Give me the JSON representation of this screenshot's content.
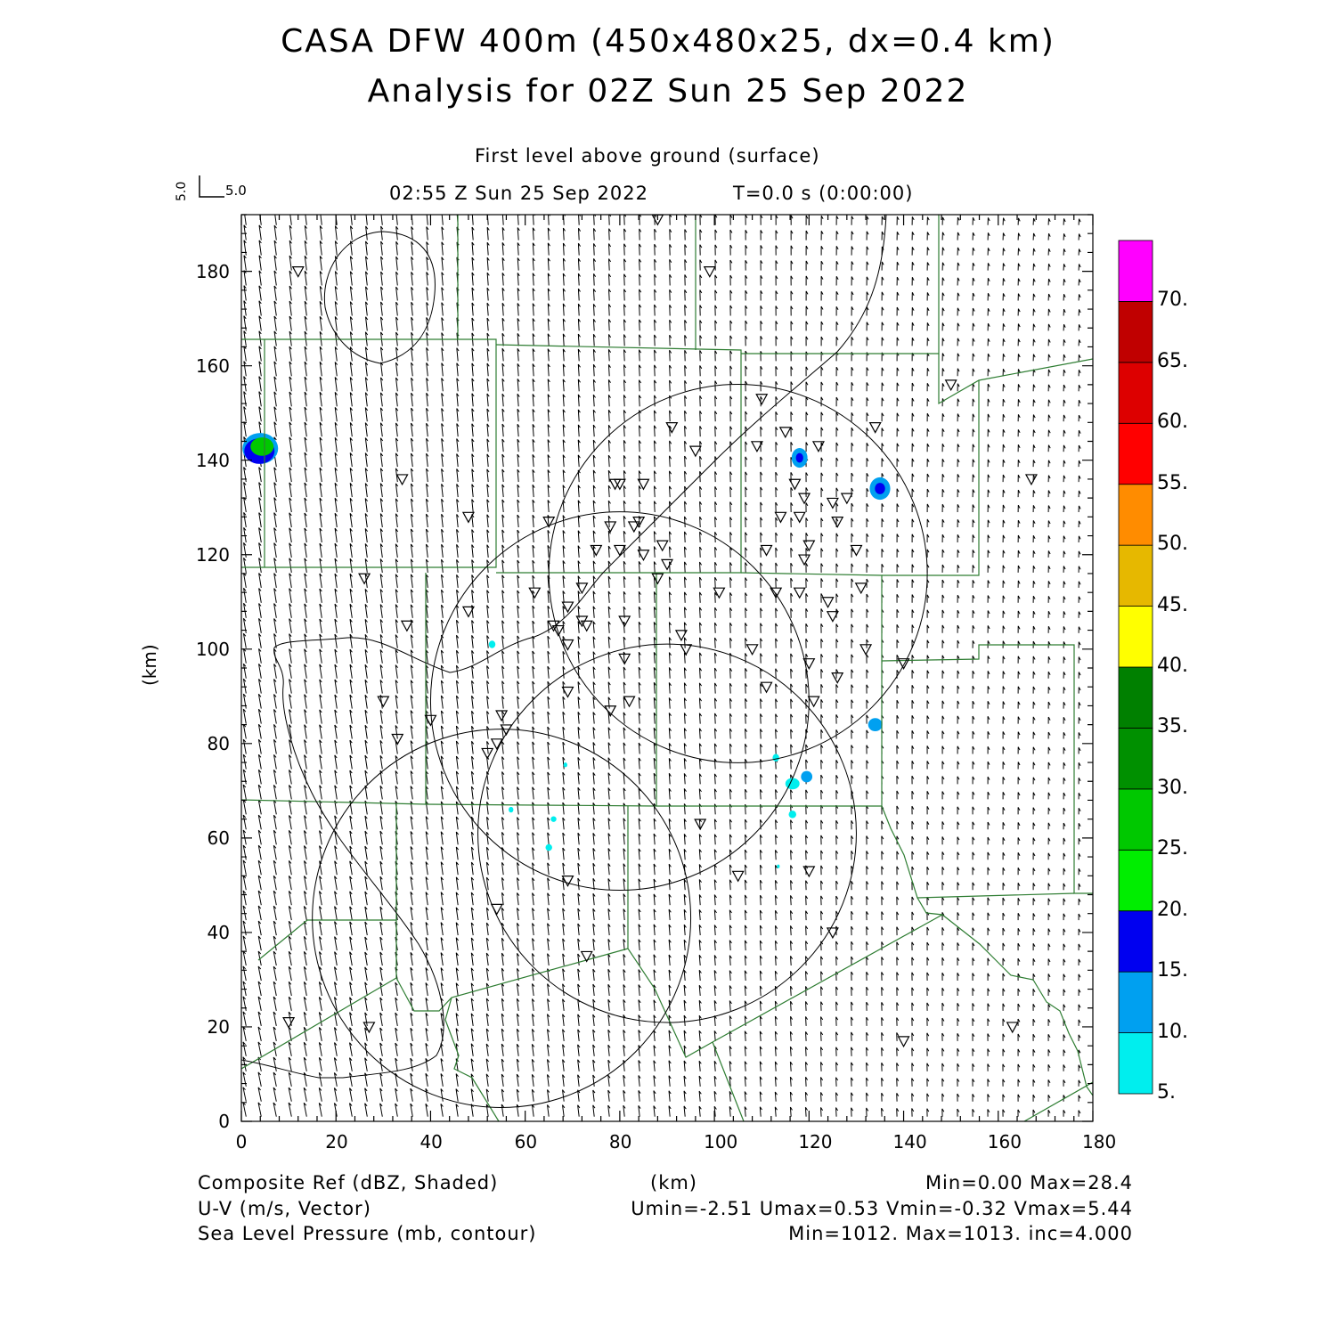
{
  "header": {
    "title_line1": "CASA DFW 400m (450x480x25, dx=0.4 km)",
    "title_line2": "Analysis for 02Z Sun 25 Sep 2022",
    "subtitle": "First level above ground (surface)",
    "valid_time": "02:55 Z Sun 25 Sep 2022",
    "forecast_time": "T=0.0 s (0:00:00)",
    "vector_key_x": "5.0",
    "vector_key_y": "5.0"
  },
  "axes": {
    "y_label": "(km)",
    "x_label": "(km)",
    "x_ticks": [
      "0",
      "20",
      "40",
      "60",
      "80",
      "100",
      "120",
      "140",
      "160",
      "180"
    ],
    "y_ticks": [
      "0",
      "20",
      "40",
      "60",
      "80",
      "100",
      "120",
      "140",
      "160",
      "180"
    ],
    "x_range": [
      0,
      180
    ],
    "y_range": [
      0,
      192
    ]
  },
  "colorbar": {
    "labels": [
      "5.",
      "10.",
      "15.",
      "20.",
      "25.",
      "30.",
      "35.",
      "40.",
      "45.",
      "50.",
      "55.",
      "60.",
      "65.",
      "70."
    ],
    "colors": [
      "#00eeee",
      "#00a0f0",
      "#0000f0",
      "#00ee00",
      "#00c800",
      "#009000",
      "#008000",
      "#ffff00",
      "#e6b800",
      "#ff8c00",
      "#ff0000",
      "#dd0000",
      "#c00000",
      "#ff00ff"
    ]
  },
  "footer": {
    "field1": "Composite Ref (dBZ, Shaded)",
    "field1_stats": "Min=0.00 Max=28.4",
    "field2": "U-V (m/s, Vector)",
    "field2_stats": "Umin=-2.51 Umax=0.53 Vmin=-0.32 Vmax=5.44",
    "field3": "Sea Level Pressure (mb, contour)",
    "field3_stats": "Min=1012. Max=1013. inc=4.000",
    "units": "(km)"
  },
  "colors": {
    "county_lines": "#2e7d32",
    "contours": "#000000",
    "vectors": "#000000"
  },
  "radar_sites_km": [
    {
      "x": 105,
      "y": 116,
      "r": 40
    },
    {
      "x": 80,
      "y": 89,
      "r": 40
    },
    {
      "x": 55,
      "y": 43,
      "r": 40
    },
    {
      "x": 90,
      "y": 61,
      "r": 40
    }
  ],
  "stations_km": [
    [
      12,
      180
    ],
    [
      88,
      191
    ],
    [
      99,
      180
    ],
    [
      150,
      156
    ],
    [
      110,
      153
    ],
    [
      91,
      147
    ],
    [
      96,
      142
    ],
    [
      115,
      146
    ],
    [
      109,
      143
    ],
    [
      122,
      143
    ],
    [
      134,
      147
    ],
    [
      34,
      136
    ],
    [
      79,
      135
    ],
    [
      85,
      135
    ],
    [
      80,
      135
    ],
    [
      119,
      132
    ],
    [
      117,
      135
    ],
    [
      125,
      131
    ],
    [
      128,
      132
    ],
    [
      167,
      136
    ],
    [
      48,
      128
    ],
    [
      65,
      127
    ],
    [
      78,
      126
    ],
    [
      83,
      126
    ],
    [
      84,
      127
    ],
    [
      89,
      122
    ],
    [
      114,
      128
    ],
    [
      118,
      128
    ],
    [
      75,
      121
    ],
    [
      80,
      121
    ],
    [
      85,
      120
    ],
    [
      90,
      118
    ],
    [
      111,
      121
    ],
    [
      119,
      119
    ],
    [
      120,
      122
    ],
    [
      126,
      127
    ],
    [
      130,
      121
    ],
    [
      88,
      115
    ],
    [
      26,
      115
    ],
    [
      62,
      112
    ],
    [
      72,
      113
    ],
    [
      101,
      112
    ],
    [
      113,
      112
    ],
    [
      118,
      112
    ],
    [
      124,
      110
    ],
    [
      125,
      107
    ],
    [
      131,
      113
    ],
    [
      69,
      109
    ],
    [
      48,
      108
    ],
    [
      35,
      105
    ],
    [
      66,
      105
    ],
    [
      67,
      104
    ],
    [
      72,
      106
    ],
    [
      73,
      105
    ],
    [
      81,
      106
    ],
    [
      69,
      101
    ],
    [
      93,
      103
    ],
    [
      94,
      100
    ],
    [
      108,
      100
    ],
    [
      120,
      97
    ],
    [
      132,
      100
    ],
    [
      140,
      97
    ],
    [
      81,
      98
    ],
    [
      111,
      92
    ],
    [
      126,
      94
    ],
    [
      30,
      89
    ],
    [
      69,
      91
    ],
    [
      82,
      89
    ],
    [
      121,
      89
    ],
    [
      40,
      85
    ],
    [
      55,
      86
    ],
    [
      56,
      83
    ],
    [
      78,
      87
    ],
    [
      33,
      81
    ],
    [
      52,
      78
    ],
    [
      54,
      80
    ],
    [
      97,
      63
    ],
    [
      69,
      51
    ],
    [
      105,
      52
    ],
    [
      120,
      53
    ],
    [
      54,
      45
    ],
    [
      125,
      40
    ],
    [
      73,
      35
    ],
    [
      10,
      21
    ],
    [
      27,
      20
    ],
    [
      140,
      17
    ],
    [
      163,
      20
    ]
  ],
  "echoes_km": [
    {
      "x": 4,
      "y": 142.5,
      "rx": 3.2,
      "ry": 2.7,
      "level": "20"
    },
    {
      "x": 118,
      "y": 140.5,
      "rx": 1.3,
      "ry": 1.7,
      "level": "15"
    },
    {
      "x": 135,
      "y": 134,
      "rx": 1.8,
      "ry": 2.0,
      "level": "15"
    },
    {
      "x": 134,
      "y": 84,
      "rx": 1.5,
      "ry": 1.4,
      "level": "10"
    },
    {
      "x": 119.5,
      "y": 73,
      "rx": 1.2,
      "ry": 1.2,
      "level": "10"
    },
    {
      "x": 116.5,
      "y": 71.5,
      "rx": 1.5,
      "ry": 1.2,
      "level": "5"
    },
    {
      "x": 113,
      "y": 77,
      "rx": 0.7,
      "ry": 0.8,
      "level": "5"
    },
    {
      "x": 116.5,
      "y": 65,
      "rx": 0.8,
      "ry": 0.8,
      "level": "5"
    },
    {
      "x": 53,
      "y": 101,
      "rx": 0.7,
      "ry": 0.8,
      "level": "5"
    },
    {
      "x": 68.5,
      "y": 75.5,
      "rx": 0.4,
      "ry": 0.5,
      "level": "5"
    },
    {
      "x": 57,
      "y": 66,
      "rx": 0.5,
      "ry": 0.6,
      "level": "5"
    },
    {
      "x": 66,
      "y": 64,
      "rx": 0.6,
      "ry": 0.6,
      "level": "5"
    },
    {
      "x": 65,
      "y": 58,
      "rx": 0.7,
      "ry": 0.7,
      "level": "5"
    },
    {
      "x": 113.5,
      "y": 54,
      "rx": 0.3,
      "ry": 0.4,
      "level": "5"
    }
  ]
}
